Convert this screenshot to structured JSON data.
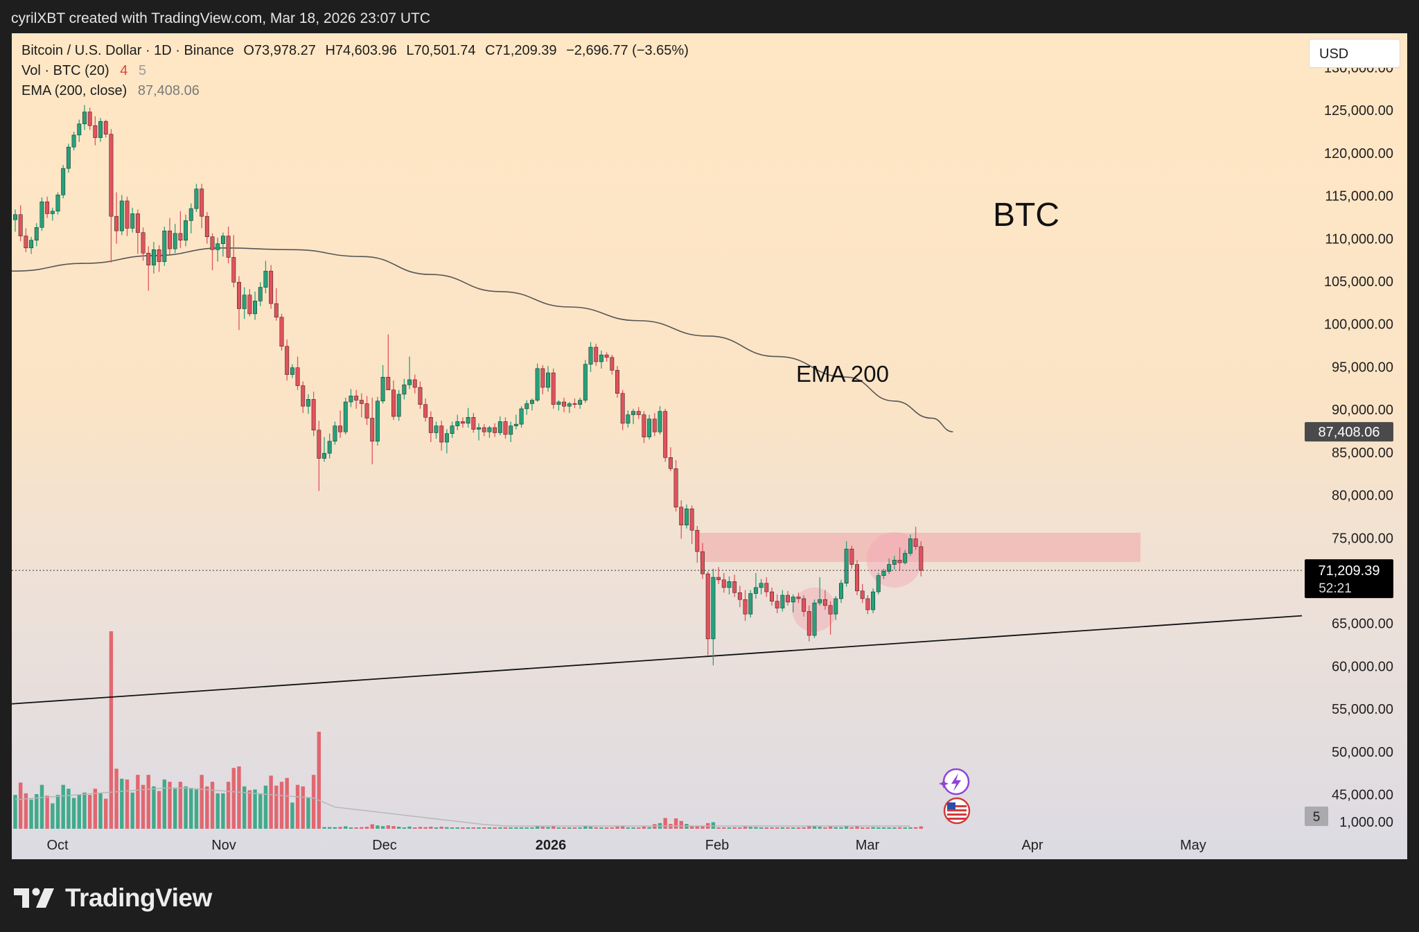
{
  "top_bar": {
    "text": "cyrilXBT created with TradingView.com, Mar 18, 2026 23:07 UTC"
  },
  "legend": {
    "symbol": "Bitcoin / U.S. Dollar · 1D · Binance",
    "open": "O73,978.27",
    "high": "H74,603.96",
    "low": "L70,501.74",
    "close": "C71,209.39",
    "change": "−2,696.77 (−3.65%)",
    "vol_label": "Vol · BTC (20)",
    "vol_val1": "4",
    "vol_val2": "5",
    "ema_label": "EMA (200, close)",
    "ema_value": "87,408.06"
  },
  "currency": "USD",
  "footer": {
    "brand": "TradingView"
  },
  "colors": {
    "up": "#26a17b",
    "down": "#e0525d",
    "zone": "#f0a6a6",
    "ema": "#555555"
  },
  "chart_data": {
    "type": "candlestick",
    "title": "BTC",
    "pair": "Bitcoin / U.S. Dollar",
    "timeframe": "1D",
    "exchange": "Binance",
    "price_ticks": [
      "130,000.00",
      "125,000.00",
      "120,000.00",
      "115,000.00",
      "110,000.00",
      "105,000.00",
      "100,000.00",
      "95,000.00",
      "90,000.00",
      "85,000.00",
      "80,000.00",
      "75,000.00",
      "65,000.00",
      "60,000.00",
      "55,000.00",
      "50,000.00",
      "45,000.00",
      "1,000.00"
    ],
    "time_ticks": [
      "Oct",
      "Nov",
      "Dec",
      "2026",
      "Feb",
      "Mar",
      "Apr",
      "May"
    ],
    "last_price": "71,209.39",
    "countdown": "52:21",
    "ema_price_label": "87,408.06",
    "volume_scale_label": "5",
    "annotations": [
      "BTC",
      "EMA 200"
    ],
    "ylim": [
      41000,
      134000
    ],
    "last_price_value": 71209.39,
    "ema_200_last": 87408.06,
    "resistance_zone": [
      72200,
      75600
    ],
    "candles_ohlc": [
      [
        112200,
        113400,
        110800,
        112800
      ],
      [
        112800,
        113900,
        109700,
        110300
      ],
      [
        110300,
        111200,
        108400,
        108900
      ],
      [
        108900,
        110200,
        108200,
        109800
      ],
      [
        109800,
        111800,
        109100,
        111300
      ],
      [
        111300,
        114800,
        110900,
        114300
      ],
      [
        114300,
        114900,
        112400,
        112900
      ],
      [
        112900,
        113600,
        112100,
        113200
      ],
      [
        113200,
        115400,
        112800,
        115100
      ],
      [
        115100,
        118600,
        114700,
        118200
      ],
      [
        118200,
        121100,
        117700,
        120700
      ],
      [
        120700,
        122500,
        120300,
        122100
      ],
      [
        122100,
        123900,
        121300,
        123400
      ],
      [
        123400,
        125600,
        122700,
        124800
      ],
      [
        124800,
        125300,
        122700,
        123200
      ],
      [
        123200,
        124300,
        120900,
        121800
      ],
      [
        121800,
        124100,
        121300,
        123700
      ],
      [
        123700,
        123900,
        121800,
        122200
      ],
      [
        122200,
        122800,
        107200,
        112600
      ],
      [
        112600,
        115400,
        109400,
        110900
      ],
      [
        110900,
        115100,
        110400,
        114400
      ],
      [
        114400,
        114900,
        110300,
        111200
      ],
      [
        111200,
        113600,
        110700,
        112900
      ],
      [
        112900,
        113400,
        108200,
        110700
      ],
      [
        110700,
        111300,
        107400,
        108300
      ],
      [
        108300,
        109100,
        103900,
        106900
      ],
      [
        106900,
        109600,
        105900,
        108700
      ],
      [
        108700,
        109200,
        106100,
        107300
      ],
      [
        107300,
        111400,
        106800,
        110900
      ],
      [
        110900,
        112400,
        108100,
        108800
      ],
      [
        108800,
        111700,
        108300,
        110600
      ],
      [
        110600,
        113200,
        108900,
        109800
      ],
      [
        109800,
        112800,
        109100,
        112100
      ],
      [
        112100,
        114100,
        110600,
        113500
      ],
      [
        113500,
        116400,
        113100,
        115800
      ],
      [
        115800,
        116400,
        111200,
        112600
      ],
      [
        112600,
        113100,
        109400,
        110200
      ],
      [
        110200,
        110600,
        106300,
        108700
      ],
      [
        108700,
        110100,
        107300,
        109400
      ],
      [
        109400,
        110700,
        107900,
        110300
      ],
      [
        110300,
        111400,
        107100,
        107800
      ],
      [
        107800,
        110400,
        104300,
        104900
      ],
      [
        104900,
        105600,
        99300,
        101800
      ],
      [
        101800,
        104300,
        100600,
        103400
      ],
      [
        103400,
        104100,
        100900,
        101200
      ],
      [
        101200,
        103800,
        100500,
        102700
      ],
      [
        102700,
        104900,
        102100,
        104300
      ],
      [
        104300,
        107400,
        103600,
        106200
      ],
      [
        106200,
        106900,
        101800,
        102400
      ],
      [
        102400,
        104200,
        100400,
        100800
      ],
      [
        100800,
        101200,
        96900,
        97400
      ],
      [
        97400,
        98200,
        93400,
        94100
      ],
      [
        94100,
        95300,
        93700,
        94900
      ],
      [
        94900,
        96200,
        92300,
        92800
      ],
      [
        92800,
        93300,
        89600,
        90400
      ],
      [
        90400,
        91800,
        89500,
        91200
      ],
      [
        91200,
        92100,
        86900,
        87600
      ],
      [
        87600,
        88700,
        80500,
        84300
      ],
      [
        84300,
        86800,
        83900,
        84900
      ],
      [
        84900,
        87200,
        84300,
        86300
      ],
      [
        86300,
        88600,
        85900,
        88100
      ],
      [
        88100,
        89900,
        86700,
        87400
      ],
      [
        87400,
        91400,
        87100,
        90900
      ],
      [
        90900,
        92400,
        90300,
        91600
      ],
      [
        91600,
        92300,
        90100,
        91100
      ],
      [
        91100,
        91900,
        89100,
        90700
      ],
      [
        90700,
        91600,
        88200,
        89000
      ],
      [
        89000,
        91400,
        83600,
        86300
      ],
      [
        86300,
        91500,
        85800,
        91000
      ],
      [
        91000,
        95200,
        90700,
        93800
      ],
      [
        93800,
        98800,
        92900,
        92300
      ],
      [
        92300,
        93400,
        88800,
        89200
      ],
      [
        89200,
        92300,
        88700,
        91800
      ],
      [
        91800,
        93600,
        91200,
        92900
      ],
      [
        92900,
        96200,
        92400,
        93500
      ],
      [
        93500,
        94100,
        91900,
        92600
      ],
      [
        92600,
        93300,
        90100,
        90600
      ],
      [
        90600,
        91300,
        88600,
        89100
      ],
      [
        89100,
        89800,
        86200,
        87300
      ],
      [
        87300,
        88600,
        86600,
        88100
      ],
      [
        88100,
        88700,
        85200,
        86200
      ],
      [
        86200,
        87700,
        84900,
        87200
      ],
      [
        87200,
        88600,
        86700,
        88100
      ],
      [
        88100,
        89400,
        87600,
        88600
      ],
      [
        88600,
        89100,
        87900,
        88400
      ],
      [
        88400,
        90200,
        87900,
        89100
      ],
      [
        89100,
        89600,
        87300,
        87700
      ],
      [
        87700,
        88400,
        86400,
        87900
      ],
      [
        87900,
        88300,
        86900,
        87400
      ],
      [
        87400,
        88100,
        86700,
        87900
      ],
      [
        87900,
        88400,
        86800,
        87300
      ],
      [
        87300,
        89200,
        87000,
        88600
      ],
      [
        88600,
        89100,
        86600,
        87100
      ],
      [
        87100,
        88600,
        86200,
        88100
      ],
      [
        88100,
        89400,
        87700,
        88300
      ],
      [
        88300,
        90400,
        87900,
        90100
      ],
      [
        90100,
        91100,
        89400,
        90700
      ],
      [
        90700,
        91300,
        89900,
        91100
      ],
      [
        91100,
        95400,
        90900,
        94800
      ],
      [
        94800,
        95200,
        91800,
        92600
      ],
      [
        92600,
        95100,
        92100,
        94300
      ],
      [
        94300,
        94800,
        90100,
        90600
      ],
      [
        90600,
        91100,
        89900,
        90900
      ],
      [
        90900,
        91400,
        89700,
        90400
      ],
      [
        90400,
        90900,
        89600,
        90700
      ],
      [
        90700,
        91300,
        90200,
        90600
      ],
      [
        90600,
        91400,
        90100,
        91100
      ],
      [
        91100,
        95800,
        90800,
        95300
      ],
      [
        95300,
        97900,
        94400,
        97300
      ],
      [
        97300,
        97700,
        95100,
        95600
      ],
      [
        95600,
        96900,
        94800,
        96400
      ],
      [
        96400,
        96700,
        95600,
        96100
      ],
      [
        96100,
        96400,
        94100,
        94600
      ],
      [
        94600,
        95100,
        91400,
        91900
      ],
      [
        91900,
        92300,
        87600,
        88400
      ],
      [
        88400,
        89900,
        87900,
        89400
      ],
      [
        89400,
        90100,
        88300,
        89800
      ],
      [
        89800,
        90300,
        88900,
        89400
      ],
      [
        89400,
        89800,
        86100,
        86800
      ],
      [
        86800,
        89400,
        86500,
        88900
      ],
      [
        88900,
        89600,
        86900,
        87400
      ],
      [
        87400,
        90400,
        87100,
        89800
      ],
      [
        89800,
        90100,
        83900,
        84400
      ],
      [
        84400,
        85600,
        82800,
        83100
      ],
      [
        83100,
        84100,
        78100,
        78600
      ],
      [
        78600,
        79400,
        74900,
        76500
      ],
      [
        76500,
        78900,
        76100,
        78400
      ],
      [
        78400,
        78800,
        74300,
        75900
      ],
      [
        75900,
        76400,
        72100,
        73400
      ],
      [
        73400,
        74400,
        70200,
        70800
      ],
      [
        70800,
        71100,
        61300,
        63200
      ],
      [
        63200,
        71400,
        60100,
        70400
      ],
      [
        70400,
        71600,
        69600,
        70100
      ],
      [
        70100,
        70900,
        68600,
        69200
      ],
      [
        69200,
        70500,
        68400,
        69900
      ],
      [
        69900,
        70700,
        68100,
        68600
      ],
      [
        68600,
        69400,
        66900,
        67800
      ],
      [
        67800,
        68900,
        65300,
        66100
      ],
      [
        66100,
        68900,
        65700,
        68500
      ],
      [
        68500,
        70900,
        67900,
        69200
      ],
      [
        69200,
        70200,
        68400,
        69700
      ],
      [
        69700,
        70400,
        68100,
        68700
      ],
      [
        68700,
        69200,
        67100,
        67600
      ],
      [
        67600,
        68400,
        66200,
        66800
      ],
      [
        66800,
        68900,
        66400,
        68300
      ],
      [
        68300,
        68800,
        67100,
        67500
      ],
      [
        67500,
        68400,
        66300,
        68100
      ],
      [
        68100,
        68600,
        67400,
        67900
      ],
      [
        67900,
        68300,
        65800,
        66400
      ],
      [
        66400,
        67100,
        62900,
        63600
      ],
      [
        63600,
        67800,
        63300,
        67400
      ],
      [
        67400,
        70400,
        67100,
        67800
      ],
      [
        67800,
        68900,
        66600,
        67100
      ],
      [
        67100,
        67600,
        63700,
        66100
      ],
      [
        66100,
        68200,
        65400,
        67900
      ],
      [
        67900,
        70100,
        67400,
        69700
      ],
      [
        69700,
        74600,
        69300,
        73700
      ],
      [
        73700,
        74100,
        71400,
        71900
      ],
      [
        71900,
        72400,
        68300,
        68800
      ],
      [
        68800,
        69600,
        67400,
        67900
      ],
      [
        67900,
        68300,
        66100,
        66600
      ],
      [
        66600,
        69100,
        66200,
        68700
      ],
      [
        68700,
        70900,
        68400,
        70600
      ],
      [
        70600,
        71400,
        70200,
        71100
      ],
      [
        71100,
        72600,
        70800,
        71900
      ],
      [
        71900,
        72900,
        71300,
        72400
      ],
      [
        72400,
        73900,
        71200,
        72100
      ],
      [
        72100,
        73600,
        71900,
        73200
      ],
      [
        73200,
        75400,
        72900,
        74900
      ],
      [
        74900,
        76300,
        73600,
        74000
      ],
      [
        73978.27,
        74603.96,
        70501.74,
        71209.39
      ]
    ],
    "ema_200": [
      106200,
      107100,
      108000,
      108900,
      108700,
      107900,
      105800,
      103800,
      102000,
      100400,
      98600,
      96200,
      93800,
      91000,
      89000,
      87408.06
    ],
    "ema_200_anchor_candles": [
      0,
      13,
      26,
      39,
      52,
      65,
      78,
      91,
      104,
      117,
      130,
      143,
      156,
      165,
      172,
      176
    ],
    "trendline": {
      "start_price": 55600,
      "end_price": 65900
    },
    "highlighted_lows_candle_index": [
      151,
      165
    ]
  }
}
